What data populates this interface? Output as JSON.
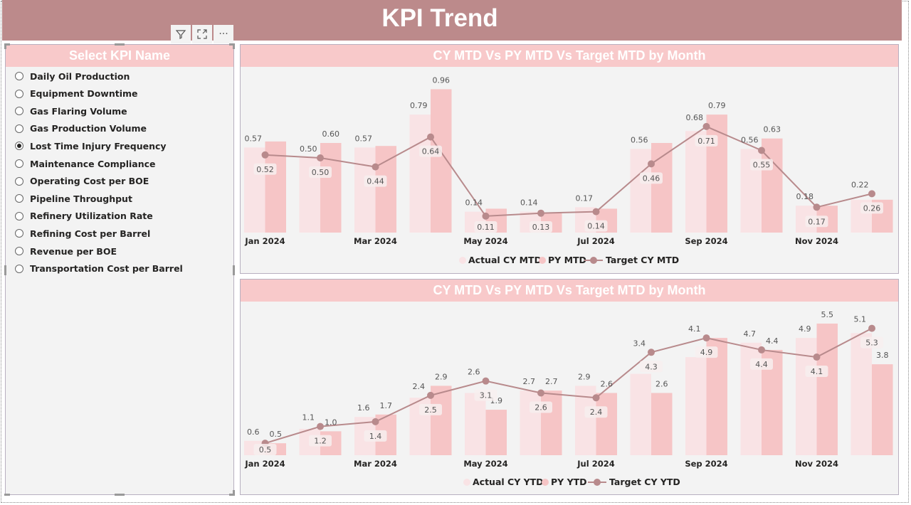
{
  "header": {
    "title": "KPI Trend"
  },
  "visual_tools": {
    "filter_icon": "filter-icon",
    "focus_icon": "focus-mode-icon",
    "more_icon": "more-options-icon",
    "more_label": "···"
  },
  "slicer": {
    "title": "Select KPI Name",
    "selected": "Lost Time Injury Frequency",
    "items": [
      "Daily Oil Production",
      "Equipment Downtime",
      "Gas Flaring Volume",
      "Gas Production Volume",
      "Lost Time Injury Frequency",
      "Maintenance Compliance",
      "Operating Cost per BOE",
      "Pipeline Throughput",
      "Refinery Utilization Rate",
      "Refining Cost per Barrel",
      "Revenue per BOE",
      "Transportation Cost per Barrel"
    ]
  },
  "colors": {
    "header": "#bc8a8b",
    "title_bar": "#f8c9ca",
    "actual": "#f9e3e5",
    "py": "#f6c5c6",
    "target": "#b88a8c",
    "background": "#f3f3f3"
  },
  "chart_data": [
    {
      "type": "bar+line",
      "title": "CY MTD Vs PY MTD Vs Target MTD by Month",
      "categories": [
        "Jan 2024",
        "Feb 2024",
        "Mar 2024",
        "Apr 2024",
        "May 2024",
        "Jun 2024",
        "Jul 2024",
        "Aug 2024",
        "Sep 2024",
        "Oct 2024",
        "Nov 2024",
        "Dec 2024"
      ],
      "tick_labels": [
        "Jan 2024",
        "",
        "Mar 2024",
        "",
        "May 2024",
        "",
        "Jul 2024",
        "",
        "Sep 2024",
        "",
        "Nov 2024",
        ""
      ],
      "ylim": [
        0,
        1.1
      ],
      "legend": "bottom-center",
      "series": [
        {
          "name": "Actual CY MTD",
          "kind": "bar",
          "values": [
            0.57,
            0.5,
            0.57,
            0.79,
            0.14,
            0.14,
            0.17,
            0.56,
            0.68,
            0.56,
            0.18,
            0.22
          ],
          "labels": [
            "0.57",
            "0.50",
            "0.57",
            "0.79",
            "0.14",
            "0.14",
            "0.17",
            "0.56",
            "0.68",
            "0.56",
            "0.18",
            "0.22"
          ]
        },
        {
          "name": "PY MTD",
          "kind": "bar",
          "values": [
            0.61,
            0.6,
            0.58,
            0.96,
            0.16,
            0.13,
            0.16,
            0.6,
            0.79,
            0.63,
            0.18,
            0.22
          ],
          "labels": [
            null,
            "0.60",
            null,
            "0.96",
            null,
            null,
            null,
            null,
            "0.79",
            "0.63",
            null,
            null
          ]
        },
        {
          "name": "Target CY MTD",
          "kind": "line",
          "values": [
            0.52,
            0.5,
            0.44,
            0.64,
            0.11,
            0.13,
            0.14,
            0.46,
            0.71,
            0.55,
            0.17,
            0.26
          ],
          "labels": [
            "0.52",
            "0.50",
            "0.44",
            "0.64",
            "0.11",
            "0.13",
            "0.14",
            "0.46",
            "0.71",
            "0.55",
            "0.17",
            "0.26"
          ]
        }
      ]
    },
    {
      "type": "bar+line",
      "title": "CY MTD Vs PY MTD Vs Target MTD by Month",
      "categories": [
        "Jan 2024",
        "Feb 2024",
        "Mar 2024",
        "Apr 2024",
        "May 2024",
        "Jun 2024",
        "Jul 2024",
        "Aug 2024",
        "Sep 2024",
        "Oct 2024",
        "Nov 2024",
        "Dec 2024"
      ],
      "tick_labels": [
        "Jan 2024",
        "",
        "Mar 2024",
        "",
        "May 2024",
        "",
        "Jul 2024",
        "",
        "Sep 2024",
        "",
        "Nov 2024",
        ""
      ],
      "ylim": [
        0,
        6.3
      ],
      "legend": "bottom-center",
      "series": [
        {
          "name": "Actual CY YTD",
          "kind": "bar",
          "values": [
            0.6,
            1.1,
            1.6,
            2.4,
            2.6,
            2.7,
            2.9,
            3.4,
            4.1,
            4.7,
            4.9,
            5.1
          ],
          "labels": [
            "0.6",
            "1.1",
            "1.6",
            "2.4",
            "2.6",
            "2.7",
            "2.9",
            "3.4",
            "4.1",
            "4.7",
            "4.9",
            "5.1"
          ]
        },
        {
          "name": "PY YTD",
          "kind": "bar",
          "values": [
            0.5,
            1.0,
            1.7,
            2.9,
            1.9,
            2.7,
            2.6,
            2.6,
            4.9,
            4.4,
            5.5,
            3.8
          ],
          "labels": [
            "0.5",
            "1.0",
            "1.7",
            "2.9",
            "1.9",
            "2.7",
            "2.6",
            "2.6",
            null,
            "4.4",
            "5.5",
            "3.8"
          ]
        },
        {
          "name": "Target CY YTD",
          "kind": "line",
          "values": [
            0.5,
            1.2,
            1.4,
            2.5,
            3.1,
            2.6,
            2.4,
            4.3,
            4.9,
            4.4,
            4.1,
            5.3
          ],
          "labels": [
            "0.5",
            "1.2",
            "1.4",
            "2.5",
            "3.1",
            "2.6",
            "2.4",
            "4.3",
            "4.9",
            "4.4",
            "4.1",
            "5.3"
          ]
        }
      ]
    }
  ]
}
